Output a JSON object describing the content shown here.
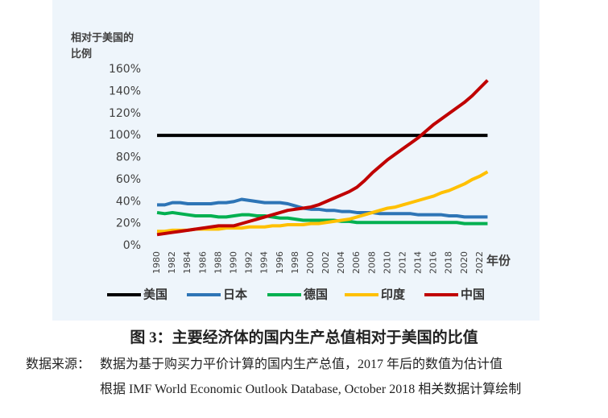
{
  "chart_data": {
    "type": "line",
    "ylabel": "相对于美国的比例",
    "xlabel": "年份",
    "x": [
      1980,
      1981,
      1982,
      1983,
      1984,
      1985,
      1986,
      1987,
      1988,
      1989,
      1990,
      1991,
      1992,
      1993,
      1994,
      1995,
      1996,
      1997,
      1998,
      1999,
      2000,
      2001,
      2002,
      2003,
      2004,
      2005,
      2006,
      2007,
      2008,
      2009,
      2010,
      2011,
      2012,
      2013,
      2014,
      2015,
      2016,
      2017,
      2018,
      2019,
      2020,
      2021,
      2022,
      2023
    ],
    "xlim": [
      1979,
      2024
    ],
    "xticks": [
      1980,
      1982,
      1984,
      1986,
      1988,
      1990,
      1992,
      1994,
      1996,
      1998,
      2000,
      2002,
      2004,
      2006,
      2008,
      2010,
      2012,
      2014,
      2016,
      2018,
      2020,
      2022
    ],
    "ylim": [
      0,
      160
    ],
    "yticks": [
      {
        "value": 0,
        "label": "0%"
      },
      {
        "value": 20,
        "label": "20%"
      },
      {
        "value": 40,
        "label": "40%"
      },
      {
        "value": 60,
        "label": "60%"
      },
      {
        "value": 80,
        "label": "80%"
      },
      {
        "value": 100,
        "label": "100%"
      },
      {
        "value": 120,
        "label": "120%"
      },
      {
        "value": 140,
        "label": "140%"
      },
      {
        "value": 160,
        "label": "160%"
      }
    ],
    "grid": false,
    "legend": "bottom",
    "series": [
      {
        "name": "美国",
        "color": "#000000",
        "values": [
          100,
          100,
          100,
          100,
          100,
          100,
          100,
          100,
          100,
          100,
          100,
          100,
          100,
          100,
          100,
          100,
          100,
          100,
          100,
          100,
          100,
          100,
          100,
          100,
          100,
          100,
          100,
          100,
          100,
          100,
          100,
          100,
          100,
          100,
          100,
          100,
          100,
          100,
          100,
          100,
          100,
          100,
          100,
          100
        ]
      },
      {
        "name": "日本",
        "color": "#2e75b6",
        "values": [
          37,
          37,
          39,
          39,
          38,
          38,
          38,
          38,
          39,
          39,
          40,
          42,
          41,
          40,
          39,
          39,
          39,
          38,
          36,
          34,
          33,
          33,
          32,
          32,
          31,
          31,
          30,
          30,
          30,
          29,
          29,
          29,
          29,
          29,
          28,
          28,
          28,
          28,
          27,
          27,
          26,
          26,
          26,
          26
        ]
      },
      {
        "name": "德国",
        "color": "#00b050",
        "values": [
          30,
          29,
          30,
          29,
          28,
          27,
          27,
          27,
          26,
          26,
          27,
          28,
          28,
          27,
          27,
          26,
          25,
          25,
          24,
          23,
          23,
          23,
          23,
          23,
          22,
          22,
          21,
          21,
          21,
          21,
          21,
          21,
          21,
          21,
          21,
          21,
          21,
          21,
          21,
          21,
          20,
          20,
          20,
          20
        ]
      },
      {
        "name": "印度",
        "color": "#ffc000",
        "values": [
          13,
          13,
          14,
          14,
          14,
          15,
          15,
          15,
          15,
          16,
          16,
          16,
          17,
          17,
          17,
          18,
          18,
          19,
          19,
          19,
          20,
          20,
          21,
          22,
          23,
          24,
          26,
          28,
          30,
          32,
          34,
          35,
          37,
          39,
          41,
          43,
          45,
          48,
          50,
          53,
          56,
          60,
          63,
          67
        ]
      },
      {
        "name": "中国",
        "color": "#c00000",
        "values": [
          10,
          11,
          12,
          13,
          14,
          15,
          16,
          17,
          18,
          18,
          18,
          20,
          22,
          24,
          26,
          28,
          30,
          32,
          33,
          34,
          35,
          37,
          40,
          43,
          46,
          49,
          53,
          59,
          66,
          72,
          78,
          83,
          88,
          93,
          98,
          104,
          110,
          115,
          120,
          125,
          130,
          136,
          143,
          150
        ]
      }
    ]
  },
  "caption": {
    "title": "图 3：主要经济体的国内生产总值相对于美国的比值",
    "source_label": "数据来源：",
    "source_lines": [
      "数据为基于购买力平价计算的国内生产总值，2017 年后的数值为估计值",
      "根据 IMF World Economic Outlook Database, October 2018  相关数据计算绘制"
    ]
  }
}
